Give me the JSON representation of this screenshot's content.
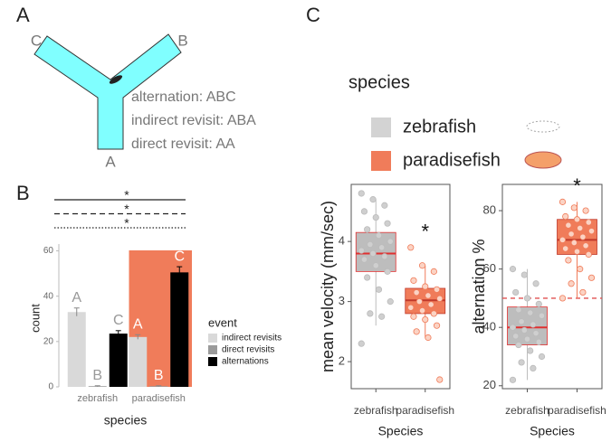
{
  "panel_labels": [
    "A",
    "B",
    "C"
  ],
  "maze": {
    "arms": [
      "C",
      "B",
      "A"
    ],
    "legend": [
      "alternation: ABC",
      "indirect revisit: ABA",
      "direct revisit: AA"
    ]
  },
  "species_legend": {
    "title": "species",
    "entries": [
      {
        "name": "zebrafish",
        "color": "#d3d3d3"
      },
      {
        "name": "paradisefish",
        "color": "#f07c5a"
      }
    ]
  },
  "chart_data": [
    {
      "type": "bar",
      "categories": [
        "zebrafish",
        "paradisefish"
      ],
      "xlabel": "species",
      "ylabel": "count",
      "ylim": [
        0,
        63
      ],
      "yticks": [
        0,
        20,
        40,
        60
      ],
      "legend_title": "event",
      "highlight_color": "#f07c5a",
      "significance": [
        {
          "label": "*",
          "style": "solid"
        },
        {
          "label": "*",
          "style": "dashed"
        },
        {
          "label": "*",
          "style": "dotted"
        }
      ],
      "series": [
        {
          "name": "indirect revisits",
          "color": "#d9d9d9",
          "values": [
            33,
            22
          ],
          "errors": [
            1.8,
            1
          ],
          "letters": [
            "A",
            "A"
          ]
        },
        {
          "name": "direct revisits",
          "color": "#9a9a9a",
          "values": [
            0.3,
            0.3
          ],
          "errors": [
            0.2,
            0.2
          ],
          "letters": [
            "B",
            "B"
          ]
        },
        {
          "name": "alternations",
          "color": "#000000",
          "values": [
            23.5,
            50.5
          ],
          "errors": [
            1.3,
            2.5
          ],
          "letters": [
            "C",
            "C"
          ]
        }
      ]
    },
    {
      "type": "box",
      "xlabel": "Species",
      "ylabel": "mean velocity (mm/sec)",
      "ylim": [
        1.55,
        4.95
      ],
      "yticks": [
        2,
        3,
        4
      ],
      "annotation": {
        "label": "*",
        "group": "paradisefish"
      },
      "groups": [
        {
          "name": "zebrafish",
          "color": "#bdbdbd",
          "median_color": "#e03030",
          "box": {
            "min": 2.6,
            "q1": 3.5,
            "median": 3.8,
            "q3": 4.15,
            "max": 4.7
          },
          "points": [
            4.8,
            4.7,
            4.6,
            4.5,
            4.4,
            4.3,
            4.2,
            4.1,
            4.0,
            3.95,
            3.9,
            3.85,
            3.8,
            3.75,
            3.7,
            3.6,
            3.5,
            3.4,
            3.2,
            3.0,
            2.8,
            2.75,
            2.3
          ]
        },
        {
          "name": "paradisefish",
          "color": "#f07c5a",
          "median_color": "#c0392b",
          "box": {
            "min": 2.4,
            "q1": 2.8,
            "median": 3.02,
            "q3": 3.22,
            "max": 3.6
          },
          "points": [
            3.9,
            3.6,
            3.5,
            3.35,
            3.25,
            3.2,
            3.15,
            3.1,
            3.05,
            3.0,
            2.95,
            2.9,
            2.85,
            2.8,
            2.75,
            2.7,
            2.6,
            2.5,
            2.4,
            1.7
          ]
        }
      ]
    },
    {
      "type": "box",
      "xlabel": "Species",
      "ylabel": "alternation %",
      "ylim": [
        19,
        89
      ],
      "yticks": [
        20,
        40,
        60,
        80
      ],
      "hline": 50,
      "annotation": {
        "label": "*",
        "group": "paradisefish"
      },
      "groups": [
        {
          "name": "zebrafish",
          "color": "#bdbdbd",
          "median_color": "#e03030",
          "box": {
            "min": 22,
            "q1": 34,
            "median": 40,
            "q3": 47,
            "max": 60
          },
          "points": [
            60,
            58,
            55,
            52,
            50,
            48,
            46,
            45,
            44,
            42,
            41,
            40,
            39,
            38,
            37,
            36,
            35,
            34,
            32,
            30,
            28,
            26,
            22
          ]
        },
        {
          "name": "paradisefish",
          "color": "#f07c5a",
          "median_color": "#c0392b",
          "box": {
            "min": 50,
            "q1": 65,
            "median": 70,
            "q3": 77,
            "max": 83
          },
          "points": [
            83,
            81,
            80,
            78,
            77,
            76,
            75,
            74,
            73,
            72,
            71,
            70,
            69,
            68,
            67,
            66,
            65,
            63,
            60,
            57,
            55,
            52,
            50
          ]
        }
      ]
    }
  ]
}
